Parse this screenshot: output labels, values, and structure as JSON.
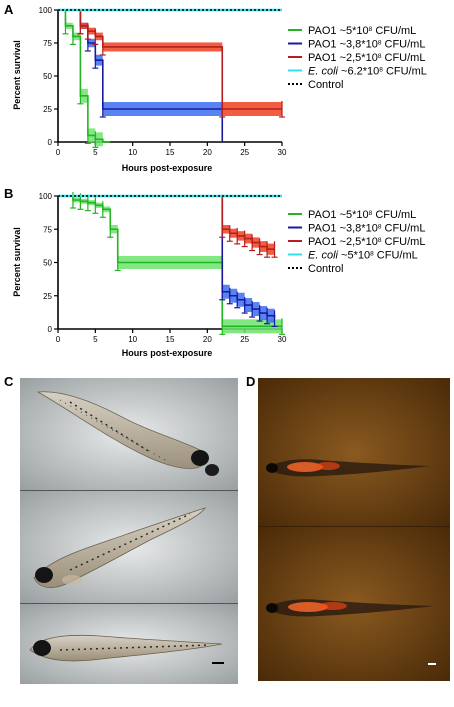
{
  "panels": {
    "A": "A",
    "B": "B",
    "C": "C",
    "D": "D"
  },
  "colors": {
    "green": "#22b422",
    "blue": "#1a1aa0",
    "red": "#b41e1e",
    "cyan": "#33e0e8",
    "control": "#000000",
    "band_green": "#6ce46c",
    "band_blue": "#3c6cf0",
    "band_red": "#f04020"
  },
  "chart_data": [
    {
      "type": "line",
      "panel": "A",
      "xlabel": "Hours post-exposure",
      "ylabel": "Percent survival",
      "xlim": [
        0,
        30
      ],
      "ylim": [
        0,
        100
      ],
      "xticks": [
        "0",
        "5",
        "10",
        "15",
        "20",
        "25",
        "30"
      ],
      "yticks": [
        "0",
        "25",
        "50",
        "75",
        "100"
      ],
      "legend_position": "right",
      "series": [
        {
          "name": "PAO1 ~5*10⁸ CFU/mL",
          "name_parts": [
            "PAO1 ~5*10",
            "8",
            " CFU/mL"
          ],
          "color": "green",
          "x": [
            0,
            1,
            2,
            3,
            4,
            5,
            6,
            7
          ],
          "y": [
            100,
            88,
            80,
            35,
            5,
            2,
            0,
            0
          ]
        },
        {
          "name": "PAO1 ~3,8*10⁸ CFU/mL",
          "name_parts": [
            "PAO1 ~3,8*10",
            "8",
            " CFU/mL"
          ],
          "color": "blue",
          "x": [
            0,
            2,
            3,
            4,
            5,
            6,
            22
          ],
          "y": [
            100,
            100,
            88,
            75,
            62,
            25,
            0
          ]
        },
        {
          "name": "PAO1 ~2,5*10⁸ CFU/mL",
          "name_parts": [
            "PAO1 ~2,5*10",
            "8",
            " CFU/mL"
          ],
          "color": "red",
          "x": [
            0,
            3,
            4,
            5,
            6,
            22,
            30
          ],
          "y": [
            100,
            88,
            84,
            80,
            72,
            25,
            25
          ]
        },
        {
          "name": "E. coli ~6.2*10⁸ CFU/mL",
          "name_parts": [
            "E. coli",
            " ~6.2*10",
            "8",
            " CFU/mL"
          ],
          "color": "cyan",
          "x": [
            0,
            30
          ],
          "y": [
            100,
            100
          ]
        },
        {
          "name": "Control",
          "name_parts": [
            "Control"
          ],
          "color": "control",
          "dashed": true,
          "x": [
            0,
            30
          ],
          "y": [
            100,
            100
          ]
        }
      ]
    },
    {
      "type": "line",
      "panel": "B",
      "xlabel": "Hours post-exposure",
      "ylabel": "Percent survival",
      "xlim": [
        0,
        30
      ],
      "ylim": [
        0,
        100
      ],
      "xticks": [
        "0",
        "5",
        "10",
        "15",
        "20",
        "25",
        "30"
      ],
      "yticks": [
        "0",
        "25",
        "50",
        "75",
        "100"
      ],
      "legend_position": "right",
      "series": [
        {
          "name": "PAO1 ~5*10⁸ CFU/mL",
          "name_parts": [
            "PAO1 ~5*10",
            "8",
            " CFU/mL"
          ],
          "color": "green",
          "x": [
            0,
            2,
            3,
            4,
            5,
            6,
            7,
            8,
            22,
            30
          ],
          "y": [
            100,
            97,
            96,
            95,
            93,
            90,
            75,
            50,
            2,
            2
          ]
        },
        {
          "name": "PAO1 ~3,8*10⁸ CFU/mL",
          "name_parts": [
            "PAO1 ~3,8*10",
            "8",
            " CFU/mL"
          ],
          "color": "blue",
          "x": [
            0,
            22,
            23,
            24,
            25,
            26,
            27,
            28,
            29
          ],
          "y": [
            100,
            28,
            25,
            22,
            18,
            15,
            12,
            10,
            8
          ]
        },
        {
          "name": "PAO1 ~2,5*10⁸ CFU/mL",
          "name_parts": [
            "PAO1 ~2,5*10",
            "8",
            " CFU/mL"
          ],
          "color": "red",
          "x": [
            0,
            22,
            23,
            24,
            25,
            26,
            27,
            28,
            29
          ],
          "y": [
            100,
            75,
            72,
            70,
            68,
            65,
            62,
            60,
            60
          ]
        },
        {
          "name": "E. coli ~5*10⁸ CFU/mL",
          "name_parts": [
            "E. coli",
            " ~5*10",
            "8",
            " CFU/mL"
          ],
          "color": "cyan",
          "x": [
            0,
            30
          ],
          "y": [
            100,
            100
          ]
        },
        {
          "name": "Control",
          "name_parts": [
            "Control"
          ],
          "color": "control",
          "dashed": true,
          "x": [
            0,
            30
          ],
          "y": [
            100,
            100
          ]
        }
      ]
    }
  ]
}
